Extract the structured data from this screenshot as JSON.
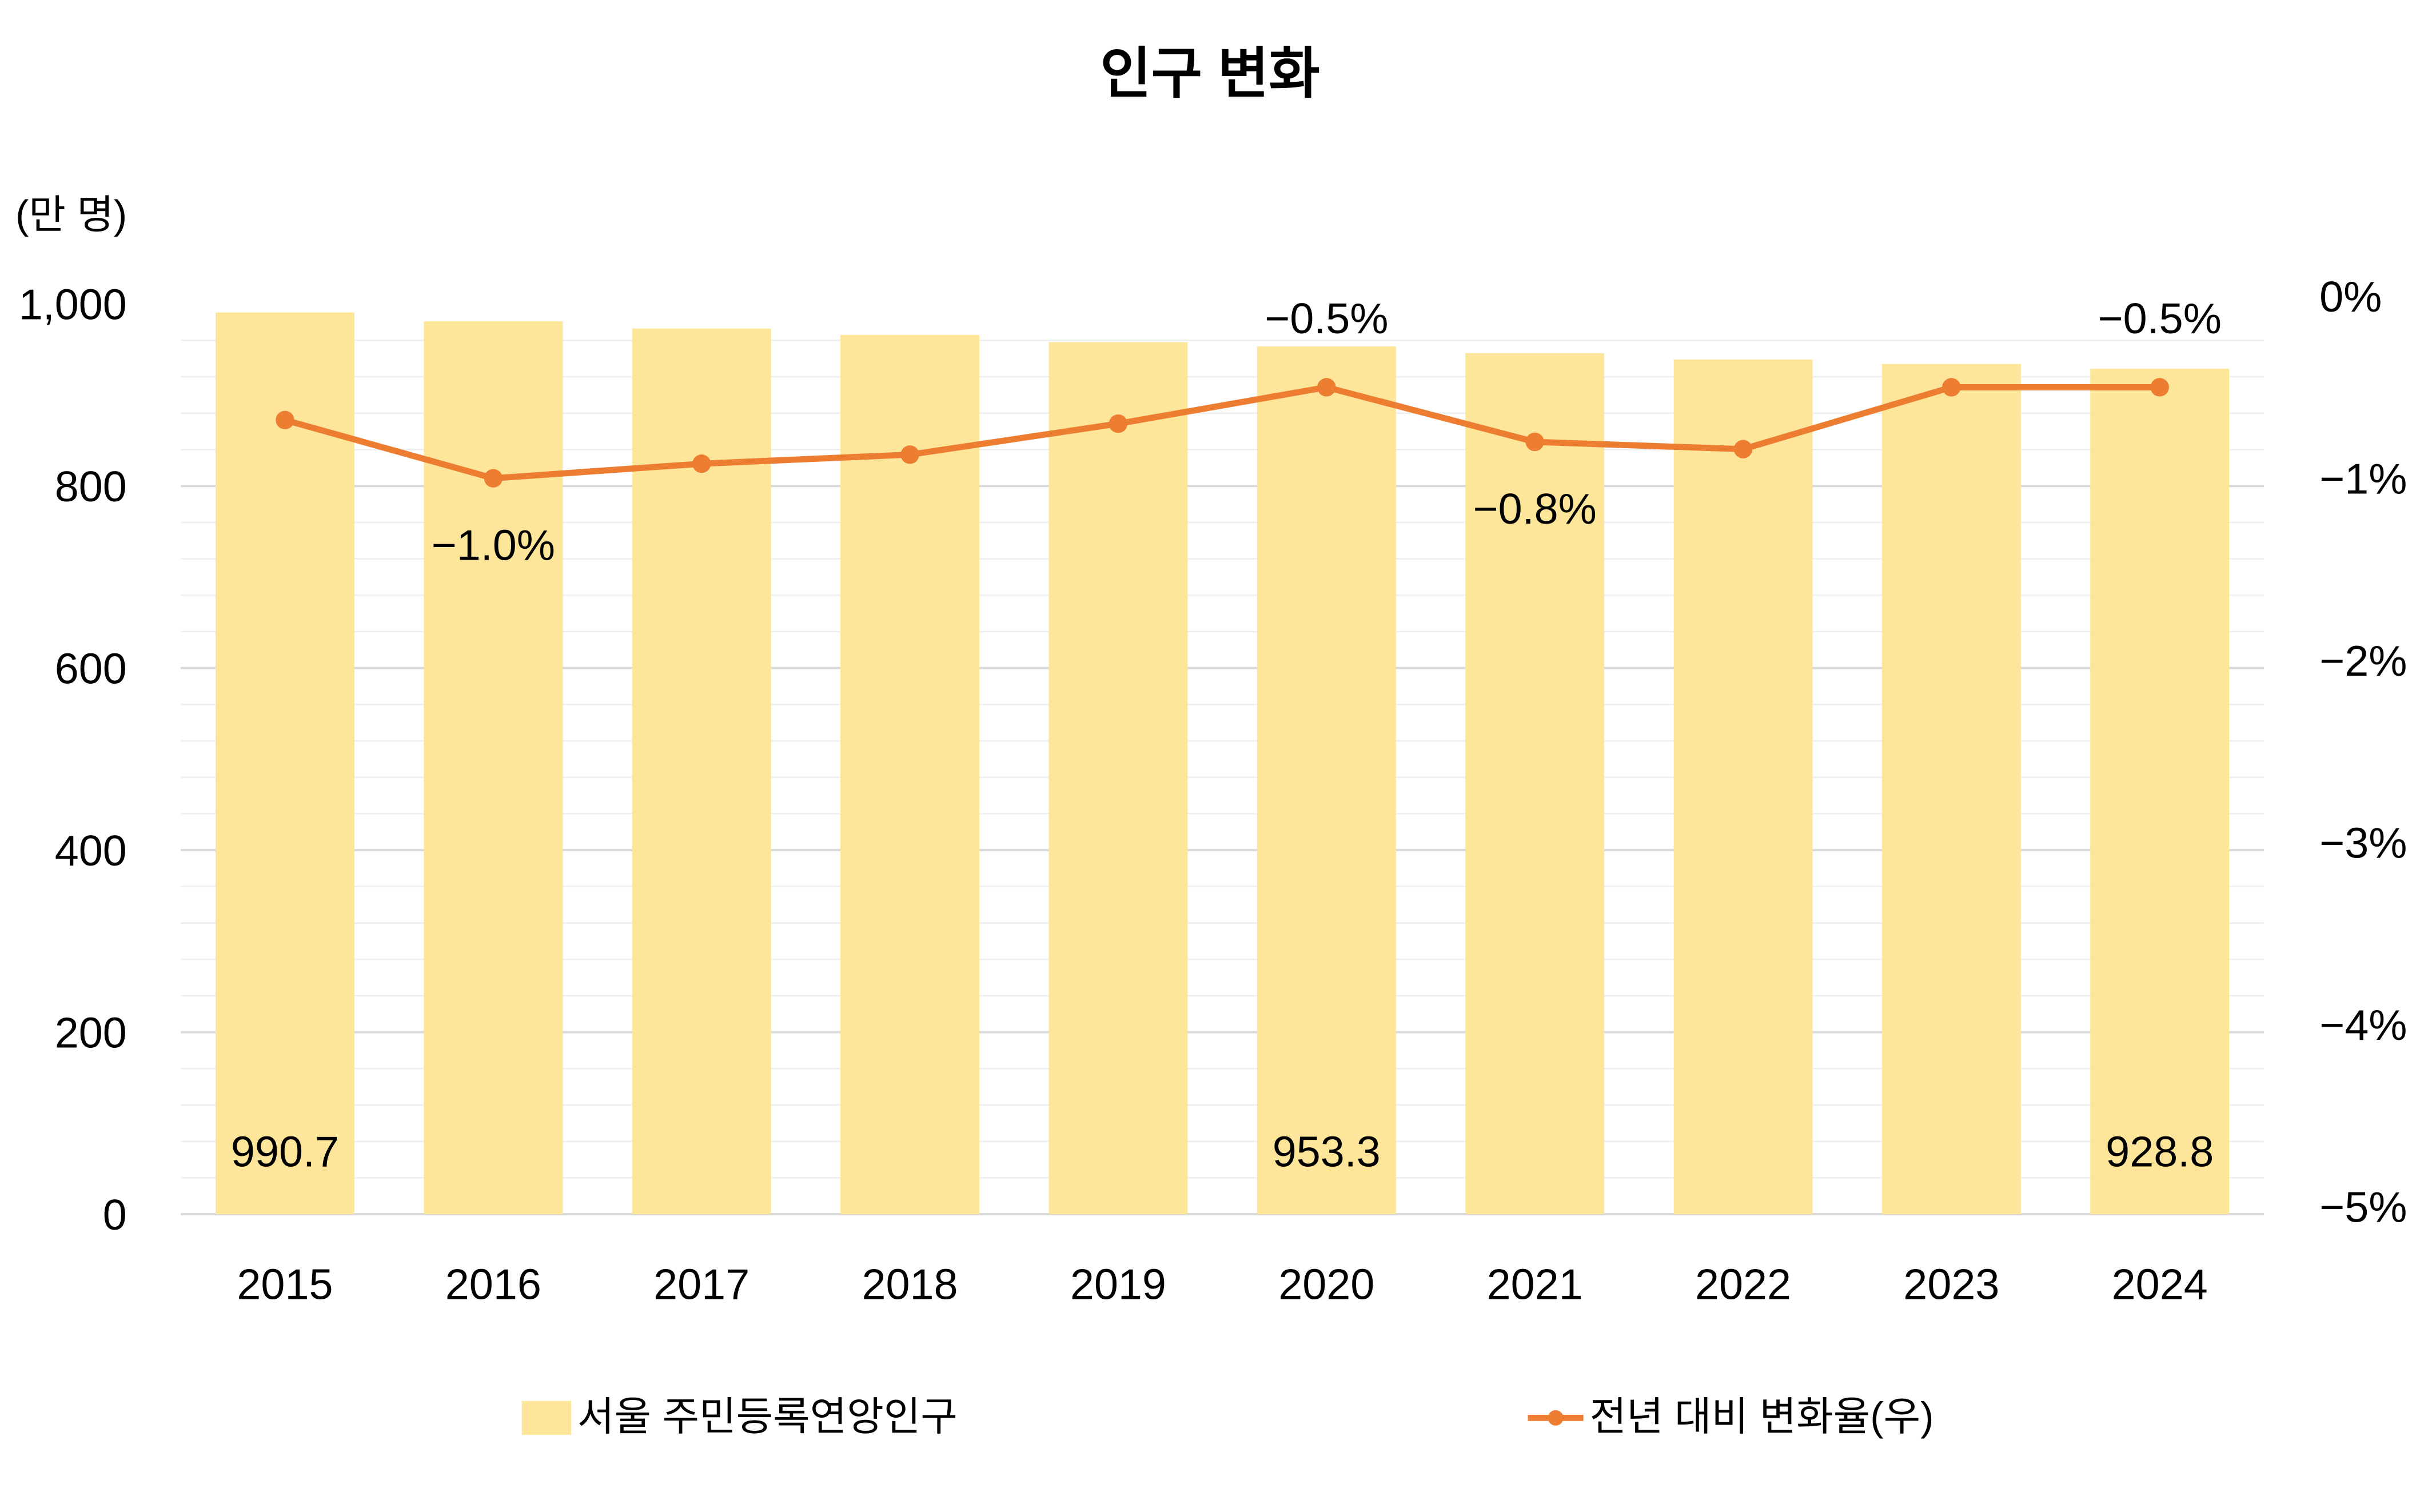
{
  "chart_data": {
    "type": "bar+line",
    "title": "인구 변화",
    "y_left_unit": "(만 명)",
    "categories": [
      "2015",
      "2016",
      "2017",
      "2018",
      "2019",
      "2020",
      "2021",
      "2022",
      "2023",
      "2024"
    ],
    "series": [
      {
        "name": "서울 주민등록연앙인구",
        "type": "bar",
        "axis": "left",
        "color": "#FDE59A",
        "values": [
          990.7,
          981,
          973,
          966,
          958,
          953.3,
          946,
          939,
          934,
          928.8
        ]
      },
      {
        "name": "전년 대비 변화율(우)",
        "type": "line",
        "axis": "right",
        "color": "#ED7D31",
        "values": [
          -0.68,
          -1.0,
          -0.92,
          -0.87,
          -0.7,
          -0.5,
          -0.8,
          -0.84,
          -0.5,
          -0.5
        ]
      }
    ],
    "bar_labels": [
      {
        "index": 0,
        "text": "990.7"
      },
      {
        "index": 5,
        "text": "953.3"
      },
      {
        "index": 9,
        "text": "928.8"
      }
    ],
    "line_labels": [
      {
        "index": 1,
        "text": "−1.0%",
        "pos": "below"
      },
      {
        "index": 5,
        "text": "−0.5%",
        "pos": "above"
      },
      {
        "index": 6,
        "text": "−0.8%",
        "pos": "below"
      },
      {
        "index": 9,
        "text": "−0.5%",
        "pos": "above"
      }
    ],
    "y_left": {
      "range": [
        0,
        1000
      ],
      "ticks": [
        "0",
        "200",
        "400",
        "600",
        "800",
        "1,000"
      ]
    },
    "y_right": {
      "range": [
        -5,
        0
      ],
      "ticks": [
        "−5%",
        "−4%",
        "−3%",
        "−2%",
        "−1%",
        "0%"
      ]
    },
    "grid": true,
    "legend_position": "bottom"
  }
}
